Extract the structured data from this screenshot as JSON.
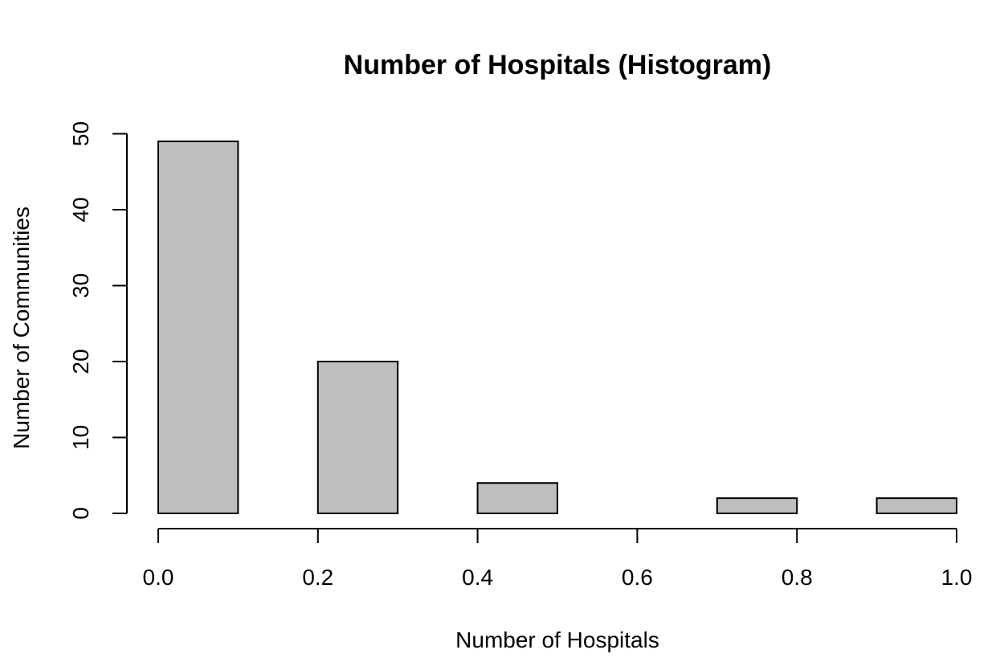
{
  "chart_data": {
    "type": "bar",
    "title": "Number of Hospitals (Histogram)",
    "xlabel": "Number of Hospitals",
    "ylabel": "Number of Communities",
    "bins": [
      {
        "x0": 0.0,
        "x1": 0.1,
        "count": 49
      },
      {
        "x0": 0.1,
        "x1": 0.2,
        "count": 0
      },
      {
        "x0": 0.2,
        "x1": 0.3,
        "count": 20
      },
      {
        "x0": 0.3,
        "x1": 0.4,
        "count": 0
      },
      {
        "x0": 0.4,
        "x1": 0.5,
        "count": 4
      },
      {
        "x0": 0.5,
        "x1": 0.6,
        "count": 0
      },
      {
        "x0": 0.6,
        "x1": 0.7,
        "count": 0
      },
      {
        "x0": 0.7,
        "x1": 0.8,
        "count": 2
      },
      {
        "x0": 0.8,
        "x1": 0.9,
        "count": 0
      },
      {
        "x0": 0.9,
        "x1": 1.0,
        "count": 2
      }
    ],
    "xlim": [
      0.0,
      1.0
    ],
    "ylim": [
      0,
      50
    ],
    "x_ticks": [
      0.0,
      0.2,
      0.4,
      0.6,
      0.8,
      1.0
    ],
    "x_tick_labels": [
      "0.0",
      "0.2",
      "0.4",
      "0.6",
      "0.8",
      "1.0"
    ],
    "y_ticks": [
      0,
      10,
      20,
      30,
      40,
      50
    ],
    "y_tick_labels": [
      "0",
      "10",
      "20",
      "30",
      "40",
      "50"
    ],
    "grid": false,
    "colors": {
      "bar_fill": "#bebebe",
      "bar_stroke": "#000000",
      "axis": "#000000",
      "background": "#ffffff"
    }
  }
}
